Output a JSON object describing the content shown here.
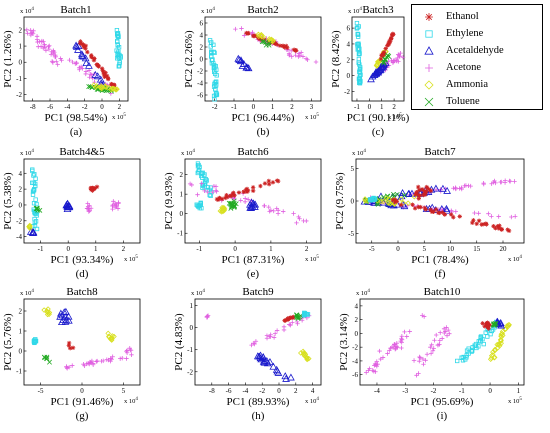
{
  "legend": {
    "entries": [
      {
        "name": "Ethanol",
        "color": "#cc2222",
        "marker": "asterisk"
      },
      {
        "name": "Ethylene",
        "color": "#30d8e8",
        "marker": "square"
      },
      {
        "name": "Acetaldehyde",
        "color": "#1a1acc",
        "marker": "triangle"
      },
      {
        "name": "Acetone",
        "color": "#e060e0",
        "marker": "plus"
      },
      {
        "name": "Ammonia",
        "color": "#d8e020",
        "marker": "diamond"
      },
      {
        "name": "Toluene",
        "color": "#22aa22",
        "marker": "x"
      }
    ]
  },
  "chart_data": [
    {
      "type": "scatter",
      "panel": "(a)",
      "title": "Batch1",
      "xlabel": "PC1 (98.54%)",
      "ylabel": "PC2 (1.26%)",
      "x_exponent": "x 10^5",
      "y_exponent": "x 10^4",
      "xlim": [
        -9,
        3
      ],
      "ylim": [
        -2.4,
        2.8
      ],
      "xticks": [
        "-8",
        "-6",
        "-4",
        "-2",
        "0",
        "2"
      ],
      "yticks": [
        "-2",
        "-1",
        "0",
        "1",
        "2"
      ]
    },
    {
      "type": "scatter",
      "panel": "(b)",
      "title": "Batch2",
      "xlabel": "PC1 (96.44%)",
      "ylabel": "PC2 (2.26%)",
      "x_exponent": "x 10^5",
      "y_exponent": "x 10^4",
      "xlim": [
        -2.5,
        3.5
      ],
      "ylim": [
        -7,
        7
      ],
      "xticks": [
        "-2",
        "-1",
        "0",
        "1",
        "2",
        "3"
      ],
      "yticks": [
        "-6",
        "-4",
        "-2",
        "0",
        "2",
        "4",
        "6"
      ]
    },
    {
      "type": "scatter",
      "panel": "(c)",
      "title": "Batch3",
      "xlabel": "PC1 (90.11%)",
      "ylabel": "PC2 (8.42%)",
      "x_exponent": "x 10^5",
      "y_exponent": "x 10^4",
      "xlim": [
        -1.4,
        2.8
      ],
      "ylim": [
        -3.2,
        7.4
      ],
      "xticks": [
        "-1",
        "0",
        "1",
        "2"
      ],
      "yticks": [
        "-2",
        "0",
        "2",
        "4",
        "6"
      ]
    },
    {
      "type": "scatter",
      "panel": "(d)",
      "title": "Batch4&5",
      "xlabel": "PC1 (93.34%)",
      "ylabel": "PC2 (5.38%)",
      "x_exponent": "x 10^5",
      "y_exponent": "x 10^4",
      "xlim": [
        -1.6,
        2.6
      ],
      "ylim": [
        -4.8,
        5.8
      ],
      "xticks": [
        "-1",
        "0",
        "1",
        "2"
      ],
      "yticks": [
        "-4",
        "-2",
        "0",
        "2",
        "4"
      ]
    },
    {
      "type": "scatter",
      "panel": "(e)",
      "title": "Batch6",
      "xlabel": "PC1 (87.31%)",
      "ylabel": "PC2 (9.93%)",
      "x_exponent": "x 10^5",
      "y_exponent": "x 10^4",
      "xlim": [
        -1.4,
        2.4
      ],
      "ylim": [
        -1.5,
        2.8
      ],
      "xticks": [
        "-1",
        "0",
        "1",
        "2"
      ],
      "yticks": [
        "-1",
        "0",
        "1",
        "2"
      ]
    },
    {
      "type": "scatter",
      "panel": "(f)",
      "title": "Batch7",
      "xlabel": "PC1 (78.4%)",
      "ylabel": "PC2 (9.75%)",
      "x_exponent": "x 10^4",
      "y_exponent": "x 10^4",
      "xlim": [
        -8,
        24
      ],
      "ylim": [
        -6.5,
        6.5
      ],
      "xticks": [
        "-5",
        "0",
        "5",
        "10",
        "15",
        "20"
      ],
      "yticks": [
        "-5",
        "0",
        "5"
      ]
    },
    {
      "type": "scatter",
      "panel": "(g)",
      "title": "Batch8",
      "xlabel": "PC1 (91.46%)",
      "ylabel": "PC2 (5.76%)",
      "x_exponent": "x 10^4",
      "y_exponent": "x 10^4",
      "xlim": [
        -7,
        7
      ],
      "ylim": [
        -1.7,
        2.6
      ],
      "xticks": [
        "-5",
        "0",
        "5"
      ],
      "yticks": [
        "-1",
        "0",
        "1",
        "2"
      ]
    },
    {
      "type": "scatter",
      "panel": "(h)",
      "title": "Batch9",
      "xlabel": "PC1 (89.93%)",
      "ylabel": "PC2 (4.83%)",
      "x_exponent": "x 10^4",
      "y_exponent": "x 10^4",
      "xlim": [
        -10,
        5
      ],
      "ylim": [
        -2.6,
        1.3
      ],
      "xticks": [
        "-8",
        "-6",
        "-4",
        "-2",
        "0",
        "2",
        "4"
      ],
      "yticks": [
        "-2",
        "-1",
        "0",
        "1"
      ]
    },
    {
      "type": "scatter",
      "panel": "(i)",
      "title": "Batch10",
      "xlabel": "PC1 (95.69%)",
      "ylabel": "PC2 (3.14%)",
      "x_exponent": "x 10^5",
      "y_exponent": "x 10^4",
      "xlim": [
        -4.6,
        1.2
      ],
      "ylim": [
        -7.5,
        5
      ],
      "xticks": [
        "-4",
        "-3",
        "-2",
        "-1",
        "0",
        "1"
      ],
      "yticks": [
        "-6",
        "-4",
        "-2",
        "0",
        "2",
        "4"
      ]
    }
  ]
}
